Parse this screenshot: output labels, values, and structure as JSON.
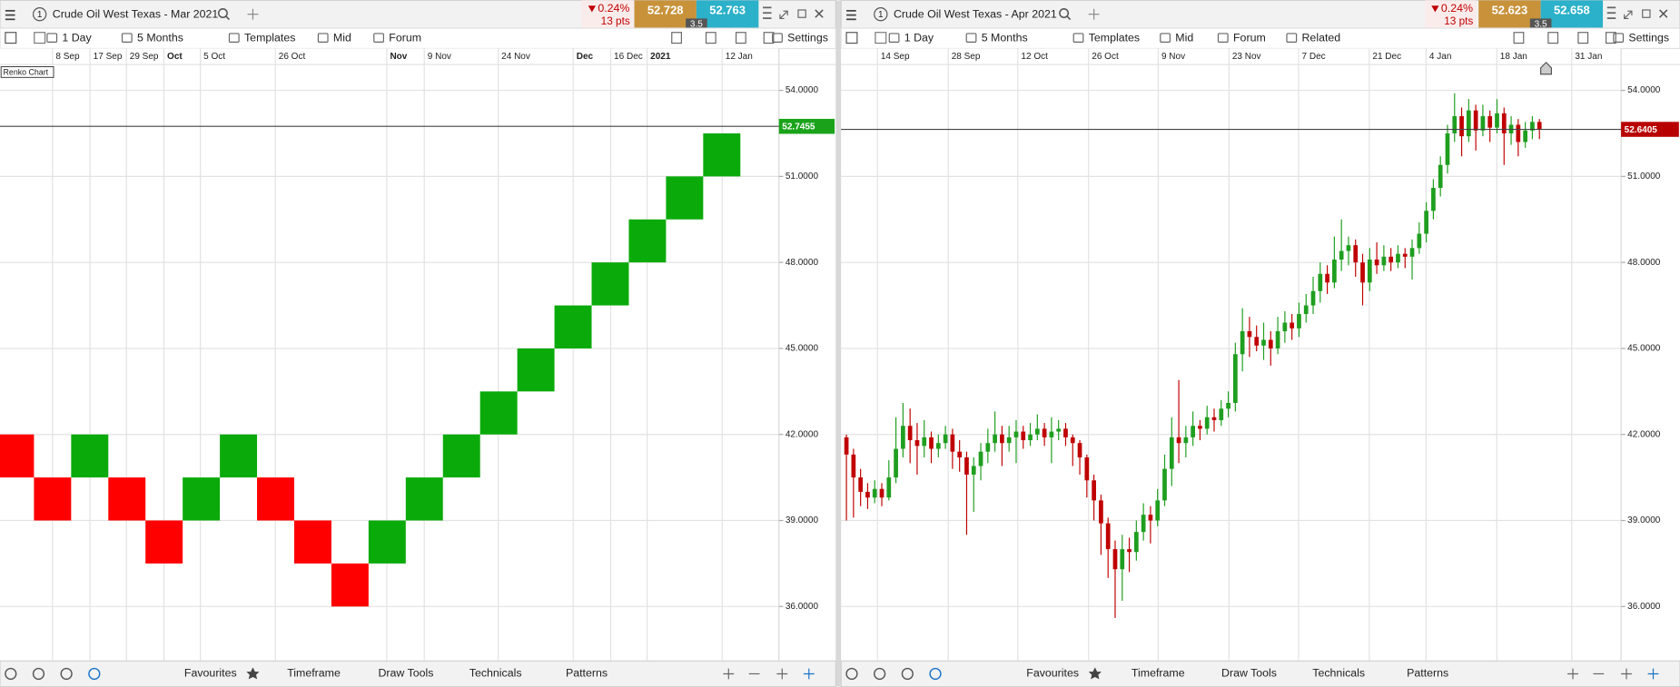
{
  "panels": [
    {
      "number": "1",
      "title": "Crude Oil West Texas - Mar 2021",
      "change": "0.24%",
      "change_pts": "13 pts",
      "sell": "52.728",
      "buy": "52.763",
      "spread": "3.5",
      "toolbar": [
        "1 Day",
        "5 Months",
        "Templates",
        "Mid",
        "Forum",
        "Settings"
      ],
      "footer": [
        "Favourites",
        "Timeframe",
        "Draw Tools",
        "Technicals",
        "Patterns"
      ]
    },
    {
      "number": "1",
      "title": "Crude Oil West Texas - Apr 2021",
      "change": "0.24%",
      "change_pts": "13 pts",
      "sell": "52.623",
      "buy": "52.658",
      "spread": "3.5",
      "toolbar": [
        "1 Day",
        "5 Months",
        "Templates",
        "Mid",
        "Forum",
        "Related",
        "Settings"
      ],
      "footer": [
        "Favourites",
        "Timeframe",
        "Draw Tools",
        "Technicals",
        "Patterns"
      ]
    }
  ],
  "chart_data": [
    {
      "type": "renko",
      "annotation": "Renko Chart",
      "date_labels": [
        "8 Sep",
        "17 Sep",
        "29 Sep",
        "Oct",
        "5 Oct",
        "26 Oct",
        "Nov",
        "9 Nov",
        "24 Nov",
        "Dec",
        "16 Dec",
        "2021",
        "12 Jan"
      ],
      "ylim": [
        34.1,
        54.9
      ],
      "yticks": [
        {
          "value": 36,
          "label": "36.0000"
        },
        {
          "value": 39,
          "label": "39.0000"
        },
        {
          "value": 42,
          "label": "42.0000"
        },
        {
          "value": 45,
          "label": "45.0000"
        },
        {
          "value": 48,
          "label": "48.0000"
        },
        {
          "value": 51,
          "label": "51.0000"
        },
        {
          "value": 54,
          "label": "54.0000"
        }
      ],
      "grid": true,
      "last_price": {
        "value": 52.7455,
        "label": "52.7455"
      },
      "up_color": "#0aaa0a",
      "down_color": "#ff0000",
      "last_color": "#1aa31a",
      "bricks": [
        [
          42,
          40.5
        ],
        [
          40.5,
          39
        ],
        [
          40.5,
          42
        ],
        [
          40.5,
          39
        ],
        [
          39,
          37.5
        ],
        [
          39,
          40.5
        ],
        [
          40.5,
          42
        ],
        [
          40.5,
          39
        ],
        [
          39,
          37.5
        ],
        [
          37.5,
          36
        ],
        [
          37.5,
          39
        ],
        [
          39,
          40.5
        ],
        [
          40.5,
          42
        ],
        [
          42,
          43.5
        ],
        [
          43.5,
          45
        ],
        [
          45,
          46.5
        ],
        [
          46.5,
          48
        ],
        [
          48,
          49.5
        ],
        [
          49.5,
          51
        ],
        [
          51,
          52.5
        ]
      ]
    },
    {
      "type": "candlestick",
      "date_labels": [
        "14 Sep",
        "28 Sep",
        "12 Oct",
        "26 Oct",
        "9 Nov",
        "23 Nov",
        "7 Dec",
        "21 Dec",
        "4 Jan",
        "18 Jan",
        "31 Jan"
      ],
      "ylim": [
        34.1,
        54.9
      ],
      "yticks": [
        {
          "value": 36,
          "label": "36.0000"
        },
        {
          "value": 39,
          "label": "39.0000"
        },
        {
          "value": 42,
          "label": "42.0000"
        },
        {
          "value": 45,
          "label": "45.0000"
        },
        {
          "value": 48,
          "label": "48.0000"
        },
        {
          "value": 51,
          "label": "51.0000"
        },
        {
          "value": 54,
          "label": "54.0000"
        }
      ],
      "grid": true,
      "last_price": {
        "value": 52.6405,
        "label": "52.6405"
      },
      "up_color": "#1f9e1f",
      "down_color": "#c00000",
      "last_color": "#b80000",
      "ohlc": [
        [
          41.9,
          42.0,
          39.0,
          41.3
        ],
        [
          41.3,
          41.5,
          39.1,
          40.5
        ],
        [
          40.5,
          40.8,
          39.5,
          40.0
        ],
        [
          40.0,
          40.3,
          39.4,
          39.8
        ],
        [
          39.8,
          40.4,
          39.6,
          40.1
        ],
        [
          40.1,
          40.3,
          39.5,
          39.8
        ],
        [
          39.8,
          41.1,
          39.7,
          40.5
        ],
        [
          40.5,
          42.6,
          40.3,
          41.5
        ],
        [
          41.5,
          43.1,
          41.2,
          42.3
        ],
        [
          42.3,
          42.9,
          41.0,
          41.8
        ],
        [
          41.8,
          42.4,
          40.6,
          41.6
        ],
        [
          41.6,
          42.5,
          41.2,
          41.9
        ],
        [
          41.9,
          42.1,
          41.0,
          41.5
        ],
        [
          41.5,
          42.0,
          41.2,
          41.7
        ],
        [
          41.7,
          42.3,
          41.5,
          42.0
        ],
        [
          42.0,
          42.2,
          40.8,
          41.4
        ],
        [
          41.4,
          41.8,
          40.7,
          41.2
        ],
        [
          41.2,
          41.4,
          38.5,
          40.6
        ],
        [
          40.6,
          41.2,
          39.3,
          40.9
        ],
        [
          40.9,
          41.7,
          40.4,
          41.4
        ],
        [
          41.4,
          42.2,
          41.0,
          41.7
        ],
        [
          41.7,
          42.8,
          41.4,
          42.0
        ],
        [
          42.0,
          42.3,
          40.9,
          41.7
        ],
        [
          41.7,
          42.3,
          41.4,
          41.9
        ],
        [
          41.9,
          42.5,
          41.0,
          42.1
        ],
        [
          42.1,
          42.3,
          41.5,
          41.8
        ],
        [
          41.8,
          42.4,
          41.6,
          42.0
        ],
        [
          42.0,
          42.7,
          41.8,
          42.2
        ],
        [
          42.2,
          42.4,
          41.6,
          41.9
        ],
        [
          41.9,
          42.6,
          41.0,
          42.1
        ],
        [
          42.1,
          42.5,
          41.8,
          42.2
        ],
        [
          42.2,
          42.4,
          41.6,
          41.9
        ],
        [
          41.9,
          42.0,
          40.9,
          41.7
        ],
        [
          41.7,
          41.8,
          40.6,
          41.2
        ],
        [
          41.2,
          41.3,
          39.8,
          40.4
        ],
        [
          40.4,
          40.6,
          39.0,
          39.7
        ],
        [
          39.7,
          39.9,
          37.8,
          38.9
        ],
        [
          38.9,
          39.1,
          37.0,
          38.0
        ],
        [
          38.0,
          38.3,
          35.6,
          37.3
        ],
        [
          37.3,
          38.5,
          36.2,
          38.0
        ],
        [
          38.0,
          38.4,
          37.2,
          37.9
        ],
        [
          37.9,
          39.0,
          37.6,
          38.6
        ],
        [
          38.6,
          39.6,
          38.3,
          39.2
        ],
        [
          39.2,
          39.5,
          38.2,
          39.0
        ],
        [
          39.0,
          40.1,
          38.8,
          39.7
        ],
        [
          39.7,
          41.3,
          39.5,
          40.8
        ],
        [
          40.8,
          42.6,
          40.2,
          41.9
        ],
        [
          41.9,
          43.9,
          41.0,
          41.7
        ],
        [
          41.7,
          42.3,
          41.2,
          41.9
        ],
        [
          41.9,
          42.8,
          41.6,
          42.3
        ],
        [
          42.3,
          42.5,
          41.8,
          42.2
        ],
        [
          42.2,
          43.0,
          42.0,
          42.6
        ],
        [
          42.6,
          42.9,
          42.1,
          42.5
        ],
        [
          42.5,
          43.2,
          42.3,
          42.9
        ],
        [
          42.9,
          43.5,
          42.6,
          43.1
        ],
        [
          43.1,
          45.2,
          42.8,
          44.8
        ],
        [
          44.8,
          46.4,
          44.2,
          45.6
        ],
        [
          45.6,
          46.1,
          44.7,
          45.4
        ],
        [
          45.4,
          45.8,
          44.9,
          45.1
        ],
        [
          45.1,
          45.9,
          44.6,
          45.3
        ],
        [
          45.3,
          45.6,
          44.4,
          45.0
        ],
        [
          45.0,
          46.1,
          44.8,
          45.6
        ],
        [
          45.6,
          46.3,
          45.2,
          45.9
        ],
        [
          45.9,
          46.2,
          45.3,
          45.7
        ],
        [
          45.7,
          46.6,
          45.4,
          46.2
        ],
        [
          46.2,
          46.9,
          45.9,
          46.5
        ],
        [
          46.5,
          47.5,
          46.2,
          47.0
        ],
        [
          47.0,
          48.0,
          46.6,
          47.6
        ],
        [
          47.6,
          47.9,
          46.9,
          47.3
        ],
        [
          47.3,
          48.9,
          47.1,
          48.1
        ],
        [
          48.1,
          49.5,
          47.7,
          48.4
        ],
        [
          48.4,
          48.9,
          47.9,
          48.6
        ],
        [
          48.6,
          48.8,
          47.5,
          48.0
        ],
        [
          48.0,
          48.3,
          46.5,
          47.3
        ],
        [
          47.3,
          48.5,
          47.0,
          48.1
        ],
        [
          48.1,
          48.7,
          47.6,
          47.9
        ],
        [
          47.9,
          48.6,
          47.7,
          48.2
        ],
        [
          48.2,
          48.5,
          47.7,
          48.0
        ],
        [
          48.0,
          48.6,
          47.8,
          48.3
        ],
        [
          48.3,
          48.5,
          47.8,
          48.2
        ],
        [
          48.2,
          48.8,
          47.4,
          48.5
        ],
        [
          48.5,
          49.4,
          48.3,
          49.0
        ],
        [
          49.0,
          50.1,
          48.7,
          49.8
        ],
        [
          49.8,
          50.9,
          49.5,
          50.6
        ],
        [
          50.6,
          51.7,
          50.3,
          51.4
        ],
        [
          51.4,
          52.8,
          51.1,
          52.5
        ],
        [
          52.5,
          53.9,
          52.2,
          53.1
        ],
        [
          53.1,
          53.4,
          51.7,
          52.4
        ],
        [
          52.4,
          53.7,
          52.2,
          53.3
        ],
        [
          53.3,
          53.5,
          51.9,
          52.6
        ],
        [
          52.6,
          53.5,
          52.4,
          53.1
        ],
        [
          53.1,
          53.3,
          52.2,
          52.7
        ],
        [
          52.7,
          53.7,
          52.5,
          53.2
        ],
        [
          53.2,
          53.4,
          51.4,
          52.5
        ],
        [
          52.5,
          53.1,
          52.1,
          52.8
        ],
        [
          52.8,
          53.0,
          51.7,
          52.2
        ],
        [
          52.2,
          52.9,
          52.0,
          52.6
        ],
        [
          52.6,
          53.1,
          52.3,
          52.9
        ],
        [
          52.9,
          53.0,
          52.3,
          52.6405
        ]
      ]
    }
  ]
}
